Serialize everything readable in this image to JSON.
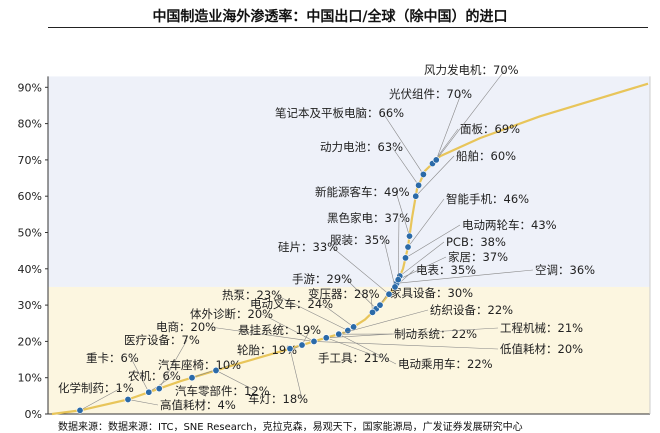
{
  "title": "中国制造业海外渗透率：中国出口/全球（除中国）的进口",
  "source": "数据来源：数据来源：ITC，SNE Research，克拉克森，易观天下，国家能源局，广发证券发展研究中心",
  "colors": {
    "curve": "#e8c55a",
    "point": "#2b6aa8",
    "upper_bg": "#eef1f9",
    "lower_bg": "#fcf6e0",
    "leader": "#888888"
  },
  "chart_data": {
    "type": "scatter",
    "y_ticks": [
      "0%",
      "10%",
      "20%",
      "30%",
      "40%",
      "50%",
      "60%",
      "70%",
      "80%",
      "90%"
    ],
    "ylim": [
      0,
      93
    ],
    "grid": false,
    "points": [
      {
        "label": "化学制药：1%",
        "value": 1
      },
      {
        "label": "重卡：6%",
        "value": 6
      },
      {
        "label": "农机：6%",
        "value": 6
      },
      {
        "label": "高值耗材：4%",
        "value": 4
      },
      {
        "label": "医疗设备：7%",
        "value": 7
      },
      {
        "label": "汽车座椅：10%",
        "value": 10
      },
      {
        "label": "汽车零部件：12%",
        "value": 12
      },
      {
        "label": "电商：20%",
        "value": 20
      },
      {
        "label": "轮胎：19%",
        "value": 19
      },
      {
        "label": "体外诊断：20%",
        "value": 20
      },
      {
        "label": "车灯：18%",
        "value": 18
      },
      {
        "label": "热泵：23%",
        "value": 23
      },
      {
        "label": "电动叉车：24%",
        "value": 24
      },
      {
        "label": "悬挂系统：19%",
        "value": 19
      },
      {
        "label": "手游：29%",
        "value": 29
      },
      {
        "label": "变压器：28%",
        "value": 28
      },
      {
        "label": "手工具：21%",
        "value": 21
      },
      {
        "label": "家具设备：30%",
        "value": 30
      },
      {
        "label": "制动系统：22%",
        "value": 22
      },
      {
        "label": "电动乘用车：22%",
        "value": 22
      },
      {
        "label": "纺织设备：22%",
        "value": 22
      },
      {
        "label": "工程机械：21%",
        "value": 21
      },
      {
        "label": "低值耗材：20%",
        "value": 20
      },
      {
        "label": "电表：35%",
        "value": 35
      },
      {
        "label": "空调：36%",
        "value": 36
      },
      {
        "label": "家居：37%",
        "value": 37
      },
      {
        "label": "PCB：38%",
        "value": 38
      },
      {
        "label": "硅片：33%",
        "value": 33
      },
      {
        "label": "服装：35%",
        "value": 35
      },
      {
        "label": "黑色家电：37%",
        "value": 37
      },
      {
        "label": "电动两轮车：43%",
        "value": 43
      },
      {
        "label": "智能手机：46%",
        "value": 46
      },
      {
        "label": "新能源客车：49%",
        "value": 49
      },
      {
        "label": "船舶：60%",
        "value": 60
      },
      {
        "label": "动力电池：63%",
        "value": 63
      },
      {
        "label": "笔记本及平板电脑：66%",
        "value": 66
      },
      {
        "label": "面板：69%",
        "value": 69
      },
      {
        "label": "光伏组件：70%",
        "value": 70
      },
      {
        "label": "风力发电机：70%",
        "value": 70
      }
    ]
  }
}
